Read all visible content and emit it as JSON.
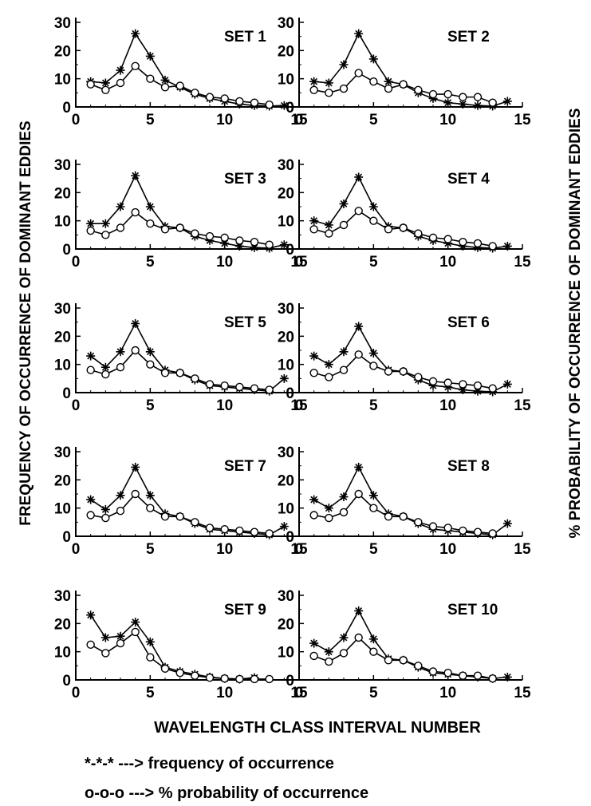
{
  "figure": {
    "left_ylabel": "FREQUENCY OF OCCURRENCE OF DOMINANT EDDIES",
    "right_ylabel": "% PROBABILITY OF OCCURRENCE OF DOMINANT EDDIES",
    "xlabel": "WAVELENGTH CLASS INTERVAL NUMBER",
    "legend": [
      "*-*-* ---> frequency of occurrence",
      "o-o-o ---> % probability of occurrence"
    ],
    "colors": {
      "ink": "#000000",
      "background": "#ffffff"
    }
  },
  "chart_data": [
    {
      "type": "line",
      "title": "SET 1",
      "x": [
        1,
        2,
        3,
        4,
        5,
        6,
        7,
        8,
        9,
        10,
        11,
        12,
        13,
        14
      ],
      "xlim": [
        0,
        15
      ],
      "ylim": [
        0,
        30
      ],
      "xticks": [
        0,
        5,
        10,
        15
      ],
      "yticks": [
        0,
        10,
        20,
        30
      ],
      "series": [
        {
          "marker": "star",
          "values": [
            9,
            8.5,
            13,
            26,
            18,
            9.5,
            7,
            4.5,
            3,
            2,
            1,
            0.5,
            0.3,
            0.5
          ]
        },
        {
          "marker": "circle",
          "values": [
            8,
            6,
            8.5,
            14.5,
            10,
            7,
            7.5,
            5,
            3.5,
            3,
            2,
            1.5,
            0.8,
            null
          ]
        }
      ]
    },
    {
      "type": "line",
      "title": "SET 2",
      "x": [
        1,
        2,
        3,
        4,
        5,
        6,
        7,
        8,
        9,
        10,
        11,
        12,
        13,
        14
      ],
      "xlim": [
        0,
        15
      ],
      "ylim": [
        0,
        30
      ],
      "xticks": [
        0,
        5,
        10,
        15
      ],
      "yticks": [
        0,
        10,
        20,
        30
      ],
      "series": [
        {
          "marker": "star",
          "values": [
            9,
            8.5,
            15,
            26,
            17,
            9,
            8,
            5,
            3,
            1.5,
            1,
            0.5,
            0.3,
            2
          ]
        },
        {
          "marker": "circle",
          "values": [
            6,
            5,
            6.5,
            12,
            9,
            6.5,
            8,
            6,
            4.5,
            4.5,
            3.5,
            3.5,
            1.5,
            null
          ]
        }
      ]
    },
    {
      "type": "line",
      "title": "SET 3",
      "x": [
        1,
        2,
        3,
        4,
        5,
        6,
        7,
        8,
        9,
        10,
        11,
        12,
        13,
        14
      ],
      "xlim": [
        0,
        15
      ],
      "ylim": [
        0,
        30
      ],
      "xticks": [
        0,
        5,
        10,
        15
      ],
      "yticks": [
        0,
        10,
        20,
        30
      ],
      "series": [
        {
          "marker": "star",
          "values": [
            9,
            9,
            15,
            26,
            15,
            8,
            7.5,
            4.5,
            3,
            2,
            1,
            0.5,
            0.3,
            1.5
          ]
        },
        {
          "marker": "circle",
          "values": [
            6.5,
            5,
            7.5,
            13,
            9,
            7,
            7.5,
            5.5,
            4.5,
            4,
            3,
            2.5,
            1.5,
            null
          ]
        }
      ]
    },
    {
      "type": "line",
      "title": "SET 4",
      "x": [
        1,
        2,
        3,
        4,
        5,
        6,
        7,
        8,
        9,
        10,
        11,
        12,
        13,
        14
      ],
      "xlim": [
        0,
        15
      ],
      "ylim": [
        0,
        30
      ],
      "xticks": [
        0,
        5,
        10,
        15
      ],
      "yticks": [
        0,
        10,
        20,
        30
      ],
      "series": [
        {
          "marker": "star",
          "values": [
            10,
            8.5,
            16,
            25.5,
            15,
            8,
            7.5,
            4.5,
            3,
            2,
            1,
            0.5,
            0.3,
            1
          ]
        },
        {
          "marker": "circle",
          "values": [
            7,
            5.5,
            8.5,
            13.5,
            10,
            7,
            7.5,
            5.5,
            4,
            3.5,
            2.5,
            2,
            1,
            null
          ]
        }
      ]
    },
    {
      "type": "line",
      "title": "SET 5",
      "x": [
        1,
        2,
        3,
        4,
        5,
        6,
        7,
        8,
        9,
        10,
        11,
        12,
        13,
        14
      ],
      "xlim": [
        0,
        15
      ],
      "ylim": [
        0,
        30
      ],
      "xticks": [
        0,
        5,
        10,
        15
      ],
      "yticks": [
        0,
        10,
        20,
        30
      ],
      "series": [
        {
          "marker": "star",
          "values": [
            13,
            9,
            14.5,
            24.5,
            14.5,
            8,
            7,
            4.5,
            2.5,
            2,
            1.5,
            1,
            0.5,
            5
          ]
        },
        {
          "marker": "circle",
          "values": [
            8,
            6.5,
            9,
            15,
            10,
            7,
            7,
            5,
            3,
            2.5,
            2,
            1.5,
            1,
            null
          ]
        }
      ]
    },
    {
      "type": "line",
      "title": "SET 6",
      "x": [
        1,
        2,
        3,
        4,
        5,
        6,
        7,
        8,
        9,
        10,
        11,
        12,
        13,
        14
      ],
      "xlim": [
        0,
        15
      ],
      "ylim": [
        0,
        30
      ],
      "xticks": [
        0,
        5,
        10,
        15
      ],
      "yticks": [
        0,
        10,
        20,
        30
      ],
      "series": [
        {
          "marker": "star",
          "values": [
            13,
            10,
            14.5,
            23.5,
            14,
            8,
            7.5,
            4.5,
            2.5,
            2,
            1,
            0.5,
            0.3,
            3
          ]
        },
        {
          "marker": "circle",
          "values": [
            7,
            5.5,
            8,
            13.5,
            9.5,
            7.5,
            7.5,
            5.5,
            4,
            3.5,
            3,
            2.5,
            1.5,
            null
          ]
        }
      ]
    },
    {
      "type": "line",
      "title": "SET 7",
      "x": [
        1,
        2,
        3,
        4,
        5,
        6,
        7,
        8,
        9,
        10,
        11,
        12,
        13,
        14
      ],
      "xlim": [
        0,
        15
      ],
      "ylim": [
        0,
        30
      ],
      "xticks": [
        0,
        5,
        10,
        15
      ],
      "yticks": [
        0,
        10,
        20,
        30
      ],
      "series": [
        {
          "marker": "star",
          "values": [
            13,
            9.5,
            14.5,
            24.5,
            14.5,
            8,
            7,
            4.5,
            2.5,
            2,
            1.5,
            1,
            0.5,
            3.5
          ]
        },
        {
          "marker": "circle",
          "values": [
            7.5,
            6.5,
            9,
            15,
            10,
            7,
            7,
            5,
            3,
            2.5,
            2,
            1.5,
            1,
            null
          ]
        }
      ]
    },
    {
      "type": "line",
      "title": "SET 8",
      "x": [
        1,
        2,
        3,
        4,
        5,
        6,
        7,
        8,
        9,
        10,
        11,
        12,
        13,
        14
      ],
      "xlim": [
        0,
        15
      ],
      "ylim": [
        0,
        30
      ],
      "xticks": [
        0,
        5,
        10,
        15
      ],
      "yticks": [
        0,
        10,
        20,
        30
      ],
      "series": [
        {
          "marker": "star",
          "values": [
            13,
            10,
            14,
            24.5,
            14.5,
            8,
            7,
            4.5,
            2.5,
            2,
            1.5,
            1,
            0.5,
            4.5
          ]
        },
        {
          "marker": "circle",
          "values": [
            7.5,
            6.5,
            8.5,
            15,
            10,
            7,
            7,
            5,
            3.5,
            3,
            2,
            1.5,
            1,
            null
          ]
        }
      ]
    },
    {
      "type": "line",
      "title": "SET 9",
      "x": [
        1,
        2,
        3,
        4,
        5,
        6,
        7,
        8,
        9,
        10,
        11,
        12,
        13,
        14
      ],
      "xlim": [
        0,
        15
      ],
      "ylim": [
        0,
        30
      ],
      "xticks": [
        0,
        5,
        10,
        15
      ],
      "yticks": [
        0,
        10,
        20,
        30
      ],
      "series": [
        {
          "marker": "star",
          "values": [
            23,
            15,
            15.5,
            20.5,
            13.5,
            4.5,
            3,
            2,
            1,
            0.5,
            0.3,
            0.8,
            null,
            null
          ]
        },
        {
          "marker": "circle",
          "values": [
            12.5,
            9.5,
            13,
            17,
            8,
            4,
            2.5,
            1.5,
            0.8,
            0.5,
            0.3,
            0.3,
            0.3,
            null
          ]
        }
      ]
    },
    {
      "type": "line",
      "title": "SET 10",
      "x": [
        1,
        2,
        3,
        4,
        5,
        6,
        7,
        8,
        9,
        10,
        11,
        12,
        13,
        14
      ],
      "xlim": [
        0,
        15
      ],
      "ylim": [
        0,
        30
      ],
      "xticks": [
        0,
        5,
        10,
        15
      ],
      "yticks": [
        0,
        10,
        20,
        30
      ],
      "series": [
        {
          "marker": "star",
          "values": [
            13,
            10,
            15,
            24.5,
            14.5,
            7.5,
            7,
            4.5,
            2.5,
            2,
            1.5,
            1,
            0.5,
            1
          ]
        },
        {
          "marker": "circle",
          "values": [
            8.5,
            6.5,
            9.5,
            15,
            10,
            7,
            7,
            5,
            3,
            2.5,
            1.5,
            1.5,
            0.5,
            null
          ]
        }
      ]
    }
  ]
}
